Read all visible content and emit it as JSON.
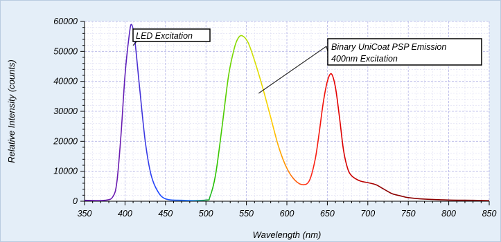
{
  "chart_data": {
    "type": "line",
    "title": "",
    "xlabel": "Wavelength (nm)",
    "ylabel": "Relative Intensity (counts)",
    "xlim": [
      350,
      850
    ],
    "ylim": [
      0,
      60000
    ],
    "x_ticks": [
      "350",
      "400",
      "450",
      "500",
      "550",
      "600",
      "650",
      "700",
      "750",
      "800",
      "850"
    ],
    "y_ticks": [
      "0",
      "10000",
      "20000",
      "30000",
      "40000",
      "50000",
      "60000"
    ],
    "grid": true,
    "legend": "none",
    "line_color": "wavelength-mapped spectrum colors (violet → blue → green → yellow → orange → red → dark red)",
    "series": [
      {
        "x": [
          350,
          375,
          385,
          390,
          395,
          400,
          405,
          408,
          412,
          418,
          425,
          432,
          440,
          450,
          470,
          500,
          505,
          512,
          520,
          528,
          535,
          540,
          545,
          552,
          560,
          570,
          580,
          590,
          600,
          610,
          620,
          628,
          635,
          640,
          645,
          650,
          655,
          660,
          665,
          670,
          675,
          680,
          690,
          700,
          710,
          720,
          730,
          740,
          750,
          770,
          800,
          830,
          850
        ],
        "values": [
          300,
          300,
          1500,
          6500,
          22000,
          42000,
          55000,
          59000,
          54000,
          38000,
          20000,
          9000,
          3500,
          800,
          300,
          400,
          1500,
          9000,
          25000,
          42000,
          51000,
          54500,
          55200,
          53000,
          47000,
          38000,
          28000,
          18000,
          11000,
          7000,
          5500,
          7000,
          14000,
          23000,
          33000,
          40000,
          42500,
          38000,
          28000,
          17000,
          11000,
          8500,
          6800,
          6200,
          5500,
          4000,
          2500,
          1800,
          1200,
          700,
          400,
          300,
          200
        ]
      }
    ],
    "annotations": [
      {
        "text": "LED Excitation",
        "points_to": [
          410,
          52000
        ]
      },
      {
        "text": "Binary UniCoat PSP Emission",
        "text2": "400nm Excitation",
        "points_to": [
          [
            565,
            36000
          ],
          [
            655,
            45500
          ]
        ]
      }
    ]
  }
}
